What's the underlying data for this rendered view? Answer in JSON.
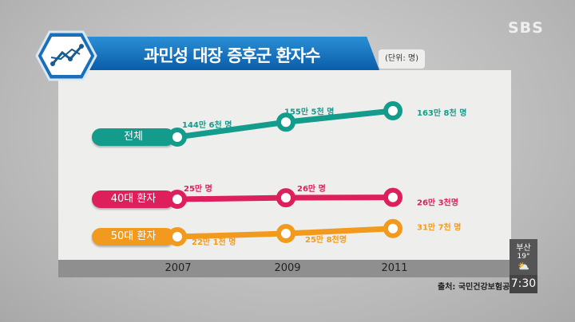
{
  "header": {
    "title": "과민성 대장 증후군 환자수",
    "unit": "(단위: 명)",
    "logo": "SBS"
  },
  "chart_data": {
    "type": "line",
    "title": "과민성 대장 증후군 환자수",
    "x": [
      "2007",
      "2009",
      "2011"
    ],
    "unit": "(단위: 명)",
    "series": [
      {
        "name": "전체",
        "color": "#139b8c",
        "values": [
          1446000,
          1555000,
          1638000
        ],
        "labels": [
          "144만 6천 명",
          "155만 5천 명",
          "163만 8천 명"
        ]
      },
      {
        "name": "40대 환자",
        "color": "#dd1f5c",
        "values": [
          250000,
          260000,
          263000
        ],
        "labels": [
          "25만 명",
          "26만 명",
          "26만 3천명"
        ]
      },
      {
        "name": "50대 환자",
        "color": "#f29a1e",
        "values": [
          221000,
          258000,
          317000
        ],
        "labels": [
          "22만 1천 명",
          "25만 8천명",
          "31만 7천 명"
        ]
      }
    ]
  },
  "footer": {
    "source": "출처: 국민건강보험공단"
  },
  "weather": {
    "city": "부산",
    "temp": "19°",
    "icon": "partly-cloudy-icon",
    "time": "7:30"
  }
}
